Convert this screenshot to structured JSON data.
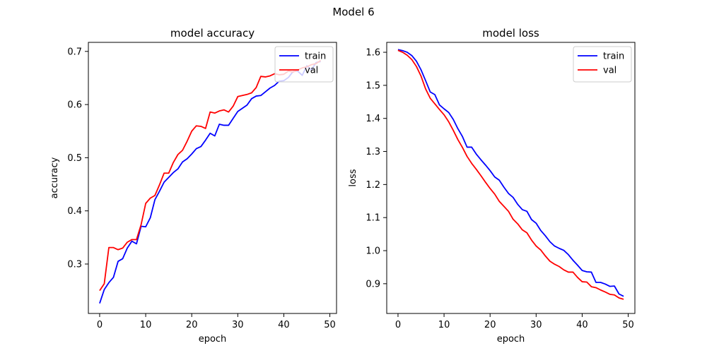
{
  "figure": {
    "suptitle": "Model 6"
  },
  "chart_data": [
    {
      "type": "line",
      "title": "model accuracy",
      "xlabel": "epoch",
      "ylabel": "accuracy",
      "xlim": [
        -2.45,
        51.45
      ],
      "ylim": [
        0.207,
        0.717
      ],
      "xticks": [
        0,
        10,
        20,
        30,
        40,
        50
      ],
      "yticks": [
        0.3,
        0.4,
        0.5,
        0.6,
        0.7
      ],
      "ytick_labels": [
        "0.3",
        "0.4",
        "0.5",
        "0.6",
        "0.7"
      ],
      "legend_position": "upper-right",
      "grid": false,
      "x": [
        0,
        1,
        2,
        3,
        4,
        5,
        6,
        7,
        8,
        9,
        10,
        11,
        12,
        13,
        14,
        15,
        16,
        17,
        18,
        19,
        20,
        21,
        22,
        23,
        24,
        25,
        26,
        27,
        28,
        29,
        30,
        31,
        32,
        33,
        34,
        35,
        36,
        37,
        38,
        39,
        40,
        41,
        42,
        43,
        44,
        45,
        46,
        47,
        48
      ],
      "series": [
        {
          "name": "train",
          "color": "#0000ff",
          "values": [
            0.226,
            0.252,
            0.265,
            0.275,
            0.305,
            0.31,
            0.33,
            0.343,
            0.338,
            0.371,
            0.37,
            0.387,
            0.421,
            0.437,
            0.454,
            0.463,
            0.472,
            0.479,
            0.492,
            0.498,
            0.507,
            0.517,
            0.521,
            0.533,
            0.546,
            0.541,
            0.563,
            0.561,
            0.561,
            0.574,
            0.587,
            0.593,
            0.599,
            0.611,
            0.616,
            0.617,
            0.624,
            0.631,
            0.636,
            0.644,
            0.645,
            0.651,
            0.662,
            0.663,
            0.655,
            0.673,
            0.665,
            0.679,
            0.681
          ]
        },
        {
          "name": "val",
          "color": "#ff0000",
          "values": [
            0.25,
            0.263,
            0.331,
            0.331,
            0.327,
            0.33,
            0.341,
            0.346,
            0.346,
            0.374,
            0.414,
            0.424,
            0.429,
            0.449,
            0.471,
            0.471,
            0.491,
            0.506,
            0.514,
            0.531,
            0.55,
            0.56,
            0.559,
            0.555,
            0.586,
            0.584,
            0.588,
            0.59,
            0.586,
            0.597,
            0.615,
            0.617,
            0.619,
            0.622,
            0.632,
            0.653,
            0.652,
            0.654,
            0.658,
            0.656,
            0.657,
            0.663,
            0.661,
            0.665,
            0.669,
            0.671,
            0.675,
            0.677,
            0.683
          ]
        }
      ]
    },
    {
      "type": "line",
      "title": "model loss",
      "xlabel": "epoch",
      "ylabel": "loss",
      "xlim": [
        -2.45,
        51.45
      ],
      "ylim": [
        0.81,
        1.63
      ],
      "xticks": [
        0,
        10,
        20,
        30,
        40,
        50
      ],
      "yticks": [
        0.9,
        1.0,
        1.1,
        1.2,
        1.3,
        1.4,
        1.5,
        1.6
      ],
      "ytick_labels": [
        "0.9",
        "1.0",
        "1.1",
        "1.2",
        "1.3",
        "1.4",
        "1.5",
        "1.6"
      ],
      "legend_position": "upper-right",
      "grid": false,
      "x": [
        0,
        1,
        2,
        3,
        4,
        5,
        6,
        7,
        8,
        9,
        10,
        11,
        12,
        13,
        14,
        15,
        16,
        17,
        18,
        19,
        20,
        21,
        22,
        23,
        24,
        25,
        26,
        27,
        28,
        29,
        30,
        31,
        32,
        33,
        34,
        35,
        36,
        37,
        38,
        39,
        40,
        41,
        42,
        43,
        44,
        45,
        46,
        47,
        48,
        49
      ],
      "series": [
        {
          "name": "train",
          "color": "#0000ff",
          "values": [
            1.608,
            1.605,
            1.6,
            1.59,
            1.573,
            1.547,
            1.514,
            1.48,
            1.472,
            1.441,
            1.429,
            1.418,
            1.397,
            1.369,
            1.345,
            1.313,
            1.313,
            1.292,
            1.275,
            1.259,
            1.242,
            1.223,
            1.213,
            1.192,
            1.173,
            1.161,
            1.14,
            1.124,
            1.119,
            1.094,
            1.083,
            1.061,
            1.045,
            1.027,
            1.014,
            1.007,
            1.001,
            0.988,
            0.971,
            0.956,
            0.94,
            0.936,
            0.935,
            0.904,
            0.904,
            0.899,
            0.892,
            0.893,
            0.869,
            0.862
          ]
        },
        {
          "name": "val",
          "color": "#ff0000",
          "values": [
            1.606,
            1.6,
            1.591,
            1.578,
            1.557,
            1.528,
            1.489,
            1.461,
            1.444,
            1.427,
            1.411,
            1.39,
            1.364,
            1.336,
            1.312,
            1.285,
            1.264,
            1.246,
            1.227,
            1.207,
            1.188,
            1.171,
            1.149,
            1.134,
            1.119,
            1.095,
            1.081,
            1.063,
            1.054,
            1.032,
            1.014,
            1.002,
            0.984,
            0.968,
            0.959,
            0.952,
            0.942,
            0.935,
            0.935,
            0.919,
            0.906,
            0.905,
            0.891,
            0.888,
            0.881,
            0.875,
            0.868,
            0.866,
            0.857,
            0.853
          ]
        }
      ]
    }
  ]
}
